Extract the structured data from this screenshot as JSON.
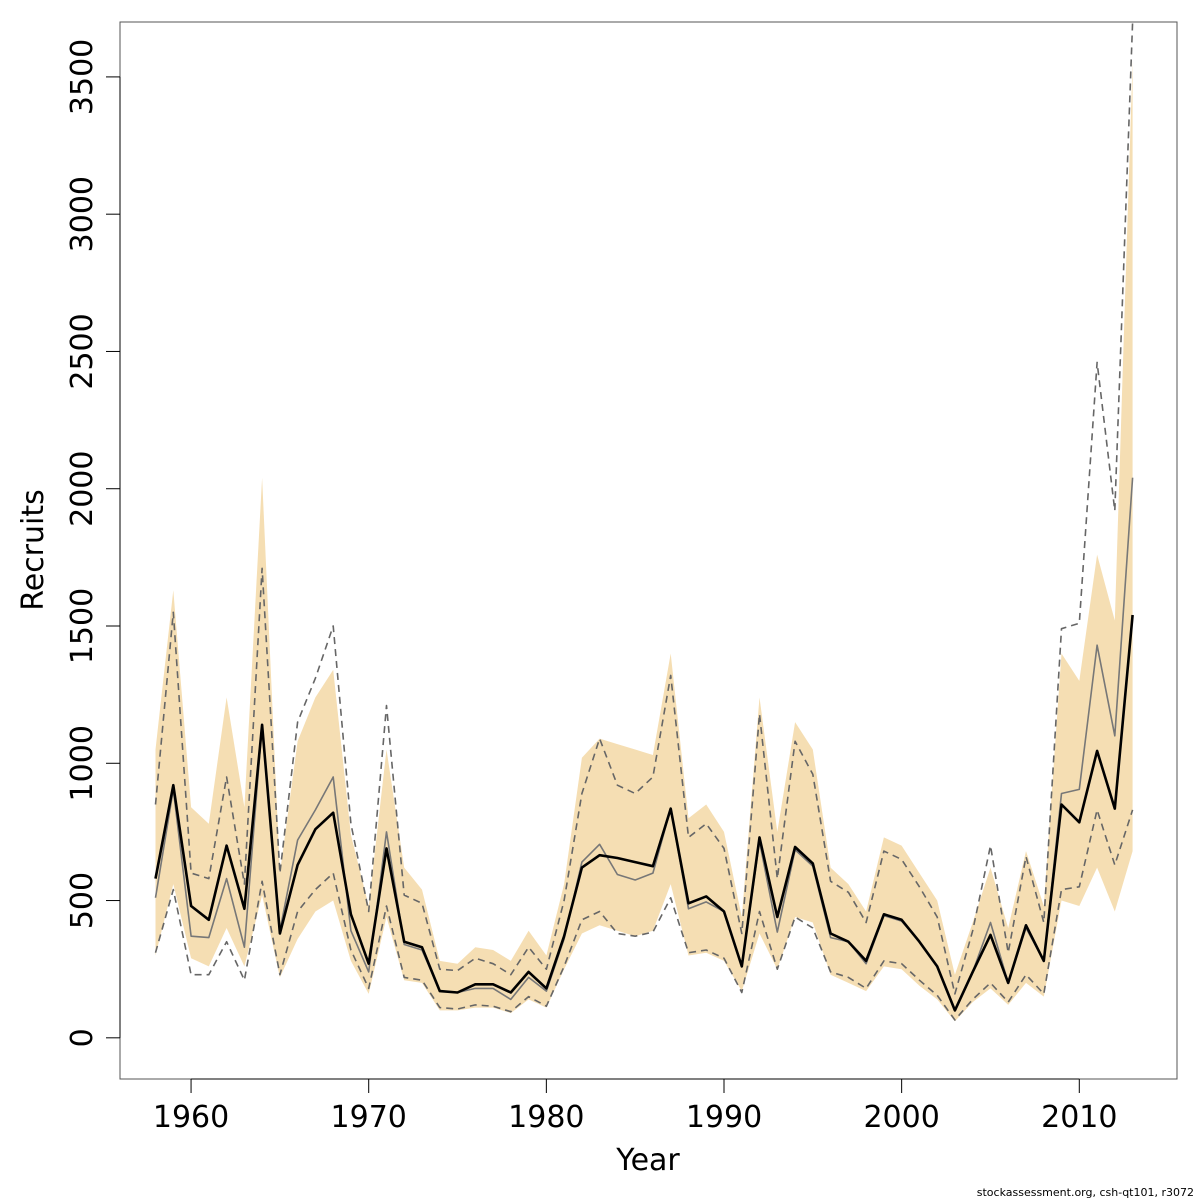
{
  "chart_data": {
    "type": "line",
    "xlabel": "Year",
    "ylabel": "Recruits",
    "xlim": [
      1956,
      2015.5
    ],
    "ylim": [
      -150,
      3700
    ],
    "x_ticks": [
      1960,
      1970,
      1980,
      1990,
      2000,
      2010
    ],
    "y_ticks": [
      0,
      500,
      1000,
      1500,
      2000,
      2500,
      3000,
      3500
    ],
    "x_tick_labels": [
      "1960",
      "1970",
      "1980",
      "1990",
      "2000",
      "2010"
    ],
    "y_tick_labels": [
      "0",
      "500",
      "1000",
      "1500",
      "2000",
      "2500",
      "3000",
      "3500"
    ],
    "grid": false,
    "band_color": "#f5deb3",
    "years": [
      1958,
      1959,
      1960,
      1961,
      1962,
      1963,
      1964,
      1965,
      1966,
      1967,
      1968,
      1969,
      1970,
      1971,
      1972,
      1973,
      1974,
      1975,
      1976,
      1977,
      1978,
      1979,
      1980,
      1981,
      1982,
      1983,
      1984,
      1985,
      1986,
      1987,
      1988,
      1989,
      1990,
      1991,
      1992,
      1993,
      1994,
      1995,
      1996,
      1997,
      1998,
      1999,
      2000,
      2001,
      2002,
      2003,
      2004,
      2005,
      2006,
      2007,
      2008,
      2009,
      2010,
      2011,
      2012,
      2013
    ],
    "band_upper": [
      1050,
      1630,
      840,
      780,
      1240,
      840,
      2040,
      600,
      1080,
      1240,
      1340,
      740,
      480,
      1050,
      620,
      540,
      280,
      270,
      330,
      320,
      280,
      390,
      300,
      560,
      1020,
      1090,
      1070,
      1050,
      1030,
      1400,
      800,
      850,
      750,
      440,
      1240,
      750,
      1150,
      1050,
      620,
      560,
      460,
      730,
      700,
      600,
      500,
      230,
      420,
      620,
      400,
      680,
      480,
      1400,
      1300,
      1760,
      1520,
      3560
    ],
    "band_lower": [
      300,
      560,
      290,
      260,
      400,
      260,
      520,
      220,
      360,
      460,
      500,
      280,
      160,
      440,
      210,
      200,
      100,
      100,
      110,
      110,
      90,
      140,
      110,
      250,
      380,
      410,
      390,
      370,
      390,
      560,
      300,
      310,
      280,
      170,
      380,
      250,
      440,
      420,
      230,
      200,
      170,
      260,
      250,
      190,
      140,
      60,
      130,
      180,
      120,
      200,
      150,
      500,
      480,
      620,
      460,
      680
    ],
    "series": [
      {
        "values": [
          580,
          920,
          480,
          430,
          700,
          470,
          1140,
          380,
          630,
          760,
          820,
          450,
          270,
          690,
          350,
          330,
          170,
          165,
          195,
          195,
          165,
          240,
          180,
          370,
          620,
          665,
          655,
          640,
          625,
          835,
          490,
          515,
          460,
          260,
          730,
          440,
          695,
          635,
          380,
          350,
          280,
          450,
          430,
          350,
          260,
          100,
          240,
          375,
          200,
          410,
          280,
          850,
          785,
          1045,
          835,
          1540
        ],
        "color": "#000000",
        "style": "solid-thick"
      },
      {
        "values": [
          510,
          905,
          370,
          365,
          580,
          330,
          1140,
          390,
          720,
          830,
          950,
          390,
          240,
          750,
          340,
          320,
          170,
          165,
          180,
          180,
          140,
          220,
          170,
          360,
          640,
          705,
          595,
          575,
          600,
          835,
          470,
          495,
          460,
          260,
          715,
          385,
          685,
          625,
          365,
          350,
          270,
          445,
          425,
          350,
          260,
          100,
          240,
          420,
          200,
          400,
          280,
          890,
          905,
          1430,
          1100,
          2040
        ],
        "color": "#777777",
        "style": "solid-thin"
      },
      {
        "values": [
          850,
          1550,
          600,
          580,
          950,
          560,
          1710,
          600,
          1150,
          1310,
          1500,
          780,
          460,
          1210,
          520,
          490,
          250,
          245,
          290,
          270,
          230,
          330,
          250,
          500,
          890,
          1090,
          920,
          890,
          950,
          1320,
          730,
          780,
          690,
          380,
          1180,
          580,
          1080,
          960,
          570,
          530,
          420,
          680,
          650,
          550,
          440,
          160,
          390,
          700,
          310,
          660,
          420,
          1490,
          1510,
          2460,
          1920,
          3700
        ],
        "color": "#666666",
        "style": "dashed"
      },
      {
        "values": [
          310,
          540,
          230,
          230,
          350,
          210,
          570,
          230,
          460,
          540,
          600,
          320,
          180,
          480,
          220,
          210,
          110,
          105,
          120,
          115,
          95,
          150,
          115,
          260,
          430,
          460,
          380,
          370,
          385,
          510,
          310,
          320,
          290,
          165,
          460,
          250,
          440,
          400,
          240,
          220,
          180,
          280,
          270,
          210,
          155,
          65,
          140,
          200,
          130,
          230,
          160,
          540,
          550,
          830,
          630,
          830
        ],
        "color": "#666666",
        "style": "dashed"
      }
    ]
  },
  "footer": {
    "credit": "stockassessment.org, csh-qt101, r3072"
  }
}
